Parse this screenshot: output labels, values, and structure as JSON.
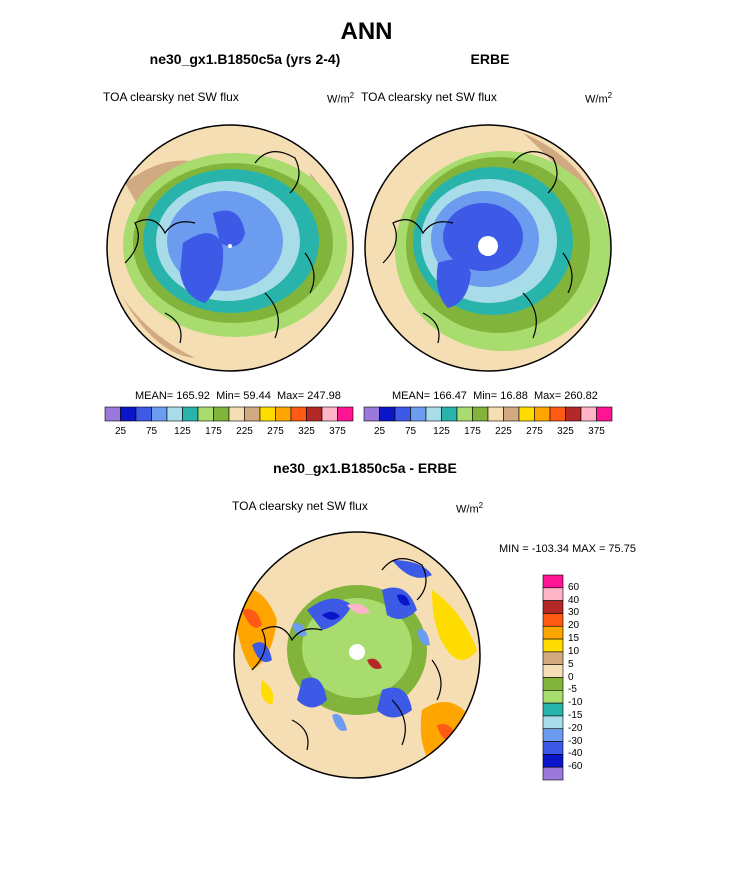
{
  "title": "ANN",
  "colors": {
    "model_obs_scale": [
      "#9a78dc",
      "#0a14c8",
      "#3c5ae6",
      "#6c9cf0",
      "#a8dce8",
      "#28b4aa",
      "#a8dc6e",
      "#82b43c",
      "#f5deb4",
      "#d2aa82",
      "#ffdc00",
      "#ffa500",
      "#ff5a14",
      "#b42828",
      "#ffb4c8",
      "#ff1493"
    ],
    "diff_scale": [
      "#9a78dc",
      "#0a14c8",
      "#3c5ae6",
      "#6c9cf0",
      "#a8dce8",
      "#28b4aa",
      "#a8dc6e",
      "#82b43c",
      "#f5deb4",
      "#d2aa82",
      "#ffdc00",
      "#ffa500",
      "#ff5a14",
      "#b42828",
      "#ffb4c8",
      "#ff1493"
    ]
  },
  "chart_data": [
    {
      "type": "heatmap",
      "projection": "north-polar-stereographic",
      "subtitle": "ne30_gx1.B1850c5a (yrs 2-4)",
      "left_label": "TOA clearsky net SW flux",
      "units_base": "W/m",
      "units_exp": "2",
      "stats": {
        "mean_label": "MEAN=",
        "mean": "165.92",
        "min_label": "Min=",
        "min": "59.44",
        "max_label": "Max=",
        "max": "247.98"
      },
      "colorbar_ticks": [
        "25",
        "75",
        "125",
        "175",
        "225",
        "275",
        "325",
        "375"
      ]
    },
    {
      "type": "heatmap",
      "projection": "north-polar-stereographic",
      "subtitle": "ERBE",
      "left_label": "TOA clearsky net SW flux",
      "units_base": "W/m",
      "units_exp": "2",
      "stats": {
        "mean_label": "MEAN=",
        "mean": "166.47",
        "min_label": "Min=",
        "min": "16.88",
        "max_label": "Max=",
        "max": "260.82"
      },
      "colorbar_ticks": [
        "25",
        "75",
        "125",
        "175",
        "225",
        "275",
        "325",
        "375"
      ]
    },
    {
      "type": "heatmap",
      "projection": "north-polar-stereographic",
      "subtitle": "ne30_gx1.B1850c5a - ERBE",
      "left_label": "TOA clearsky net SW flux",
      "units_base": "W/m",
      "units_exp": "2",
      "minmax_text": "MIN = -103.34 MAX =  75.75",
      "colorbar_ticks": [
        "60",
        "40",
        "30",
        "20",
        "15",
        "10",
        "5",
        "0",
        "-5",
        "-10",
        "-15",
        "-20",
        "-30",
        "-40",
        "-60"
      ]
    }
  ]
}
